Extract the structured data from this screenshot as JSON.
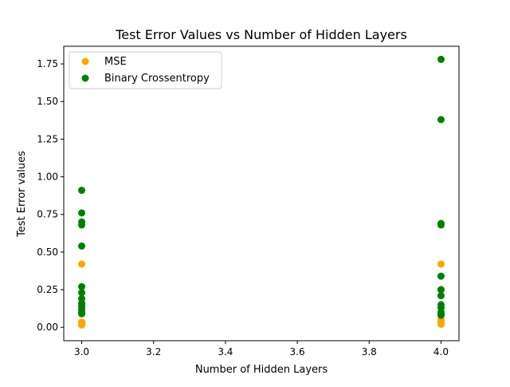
{
  "chart_data": {
    "type": "scatter",
    "title": "Test Error Values vs Number of Hidden Layers",
    "xlabel": "Number of Hidden Layers",
    "ylabel": "Test Error values",
    "xlim": [
      2.95,
      4.05
    ],
    "ylim": [
      -0.089,
      1.867
    ],
    "xticks": [
      3.0,
      3.2,
      3.4,
      3.6,
      3.8,
      4.0
    ],
    "xtick_labels": [
      "3.0",
      "3.2",
      "3.4",
      "3.6",
      "3.8",
      "4.0"
    ],
    "yticks": [
      0.0,
      0.25,
      0.5,
      0.75,
      1.0,
      1.25,
      1.5,
      1.75
    ],
    "ytick_labels": [
      "0.00",
      "0.25",
      "0.50",
      "0.75",
      "1.00",
      "1.25",
      "1.50",
      "1.75"
    ],
    "grid": false,
    "legend_position": "top-left",
    "series": [
      {
        "name": "MSE",
        "color": "#ffa500",
        "points": [
          [
            3,
            0.42
          ],
          [
            3,
            0.035
          ],
          [
            3,
            0.03
          ],
          [
            3,
            0.025
          ],
          [
            3,
            0.02
          ],
          [
            3,
            0.015
          ],
          [
            4,
            0.42
          ],
          [
            4,
            0.25
          ],
          [
            4,
            0.05
          ],
          [
            4,
            0.035
          ],
          [
            4,
            0.03
          ],
          [
            4,
            0.025
          ],
          [
            4,
            0.02
          ]
        ]
      },
      {
        "name": "Binary Crossentropy",
        "color": "#008000",
        "points": [
          [
            3,
            0.91
          ],
          [
            3,
            0.76
          ],
          [
            3,
            0.7
          ],
          [
            3,
            0.68
          ],
          [
            3,
            0.54
          ],
          [
            3,
            0.27
          ],
          [
            3,
            0.23
          ],
          [
            3,
            0.19
          ],
          [
            3,
            0.16
          ],
          [
            3,
            0.14
          ],
          [
            3,
            0.12
          ],
          [
            3,
            0.1
          ],
          [
            3,
            0.09
          ],
          [
            4,
            1.78
          ],
          [
            4,
            1.38
          ],
          [
            4,
            0.69
          ],
          [
            4,
            0.68
          ],
          [
            4,
            0.34
          ],
          [
            4,
            0.25
          ],
          [
            4,
            0.21
          ],
          [
            4,
            0.15
          ],
          [
            4,
            0.13
          ],
          [
            4,
            0.1
          ],
          [
            4,
            0.09
          ],
          [
            4,
            0.08
          ]
        ]
      }
    ]
  }
}
